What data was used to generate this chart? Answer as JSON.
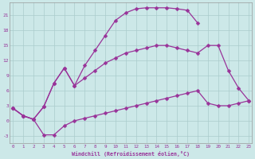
{
  "background_color": "#cce8e8",
  "grid_color": "#aacccc",
  "line_color": "#993399",
  "xlim": [
    -0.3,
    23.3
  ],
  "ylim": [
    -4.5,
    23.5
  ],
  "xticks": [
    0,
    1,
    2,
    3,
    4,
    5,
    6,
    7,
    8,
    9,
    10,
    11,
    12,
    13,
    14,
    15,
    16,
    17,
    18,
    19,
    20,
    21,
    22,
    23
  ],
  "yticks": [
    -3,
    0,
    3,
    6,
    9,
    12,
    15,
    18,
    21
  ],
  "xlabel": "Windchill (Refroidissement éolien,°C)",
  "line1_x": [
    0,
    1,
    2,
    3,
    4,
    5,
    6,
    7,
    8,
    9,
    10,
    11,
    12,
    13,
    14,
    15,
    16,
    17,
    18
  ],
  "line1_y": [
    2.5,
    1.0,
    0.3,
    2.8,
    7.5,
    10.5,
    7.0,
    11.0,
    14.0,
    17.0,
    20.0,
    21.5,
    22.3,
    22.5,
    22.5,
    22.5,
    22.3,
    22.0,
    19.5
  ],
  "line2_x": [
    0,
    1,
    2,
    3,
    4,
    5,
    6,
    7,
    8,
    9,
    10,
    11,
    12,
    13,
    14,
    15,
    16,
    17,
    18,
    19,
    20,
    21,
    22,
    23
  ],
  "line2_y": [
    2.5,
    1.0,
    0.3,
    2.8,
    7.5,
    10.5,
    7.0,
    8.5,
    10.0,
    11.5,
    12.5,
    13.5,
    14.0,
    14.5,
    15.0,
    15.0,
    14.5,
    14.0,
    13.5,
    15.0,
    15.0,
    10.0,
    6.5,
    4.0
  ],
  "line3_x": [
    0,
    1,
    2,
    3,
    4,
    5,
    6,
    7,
    8,
    9,
    10,
    11,
    12,
    13,
    14,
    15,
    16,
    17,
    18,
    19,
    20,
    21,
    22,
    23
  ],
  "line3_y": [
    2.5,
    1.0,
    0.3,
    -2.8,
    -2.8,
    -1.0,
    0.0,
    0.5,
    1.0,
    1.5,
    2.0,
    2.5,
    3.0,
    3.5,
    4.0,
    4.5,
    5.0,
    5.5,
    6.0,
    3.5,
    3.0,
    3.0,
    3.5,
    4.0
  ]
}
